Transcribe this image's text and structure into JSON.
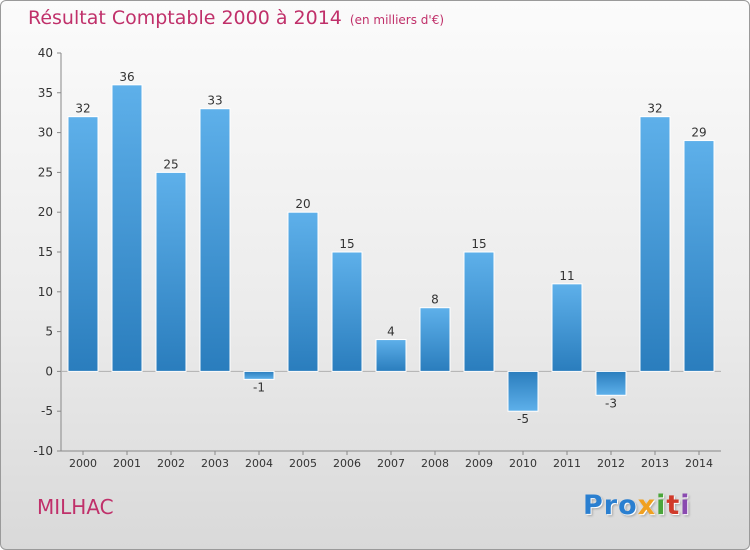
{
  "title": "Résultat Comptable 2000 à 2014",
  "subtitle": "(en milliers d'€)",
  "commune": "MILHAC",
  "logo": {
    "p1": "Pro",
    "p2": "x",
    "p3": "i",
    "p4": "t",
    "p5": "i"
  },
  "colors": {
    "title": "#c0306a",
    "bar_top": "#5eb0ea",
    "bar_bottom": "#2a7dbd"
  },
  "chart_data": {
    "type": "bar",
    "title": "Résultat Comptable 2000 à 2014",
    "subtitle": "(en milliers d'€)",
    "categories": [
      "2000",
      "2001",
      "2002",
      "2003",
      "2004",
      "2005",
      "2006",
      "2007",
      "2008",
      "2009",
      "2010",
      "2011",
      "2012",
      "2013",
      "2014"
    ],
    "values": [
      32,
      36,
      25,
      33,
      -1,
      20,
      15,
      4,
      8,
      15,
      -5,
      11,
      -3,
      32,
      29
    ],
    "data_labels": [
      "32",
      "36",
      "25",
      "33",
      "-1",
      "20",
      "15",
      "4",
      "8",
      "15",
      "-5",
      "11",
      "-3",
      "32",
      "29"
    ],
    "ylim": [
      -10,
      40
    ],
    "yticks": [
      -10,
      -5,
      0,
      5,
      10,
      15,
      20,
      25,
      30,
      35,
      40
    ],
    "xlabel": "",
    "ylabel": "",
    "grid": false
  }
}
